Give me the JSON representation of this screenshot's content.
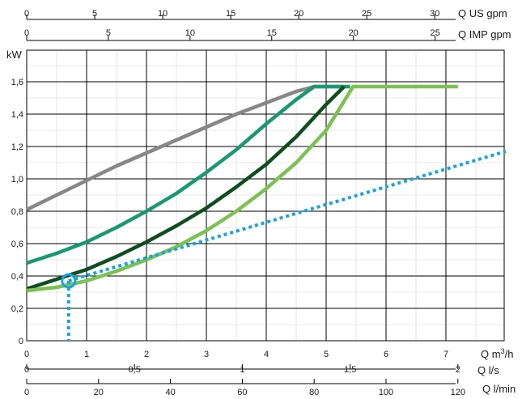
{
  "chart_data": {
    "type": "line",
    "grid": true,
    "y_axis": {
      "label": "kW",
      "ticks": [
        "0",
        "0,2",
        "0,4",
        "0,6",
        "0,8",
        "1,0",
        "1,2",
        "1,4",
        "1,6"
      ],
      "ylim": [
        0,
        1.8
      ]
    },
    "x_axis": {
      "label": "Q m³/h",
      "ticks": [
        "0",
        "1",
        "2",
        "3",
        "4",
        "5",
        "6",
        "7"
      ],
      "xlim": [
        0,
        8
      ]
    },
    "secondary_axes": [
      {
        "label": "Q US gpm",
        "position": "top-outer",
        "ticks": [
          {
            "v": 0,
            "t": "0"
          },
          {
            "v": 5,
            "t": "5"
          },
          {
            "v": 10,
            "t": "10"
          },
          {
            "v": 15,
            "t": "15"
          },
          {
            "v": 20,
            "t": "20"
          },
          {
            "v": 25,
            "t": "25"
          },
          {
            "v": 30,
            "t": "30"
          }
        ],
        "per_m3h": 4.4029
      },
      {
        "label": "Q IMP gpm",
        "position": "top-inner",
        "ticks": [
          {
            "v": 0,
            "t": "0"
          },
          {
            "v": 5,
            "t": "5"
          },
          {
            "v": 10,
            "t": "10"
          },
          {
            "v": 15,
            "t": "15"
          },
          {
            "v": 20,
            "t": "20"
          },
          {
            "v": 25,
            "t": "25"
          }
        ],
        "per_m3h": 3.6662
      },
      {
        "label": "Q l/s",
        "position": "bottom-middle",
        "ticks": [
          {
            "v": 0,
            "t": "0"
          },
          {
            "v": 0.5,
            "t": "0,5"
          },
          {
            "v": 1,
            "t": "1"
          },
          {
            "v": 1.5,
            "t": "1,5"
          },
          {
            "v": 2,
            "t": "2"
          }
        ],
        "per_m3h": 0.27778
      },
      {
        "label": "Q l/min",
        "position": "bottom-outer",
        "ticks": [
          {
            "v": 0,
            "t": "0"
          },
          {
            "v": 20,
            "t": "20"
          },
          {
            "v": 40,
            "t": "40"
          },
          {
            "v": 60,
            "t": "60"
          },
          {
            "v": 80,
            "t": "80"
          },
          {
            "v": 100,
            "t": "100"
          },
          {
            "v": 120,
            "t": "120"
          }
        ],
        "per_m3h": 16.6667
      }
    ],
    "series": [
      {
        "color": "#878787",
        "x": [
          0,
          0.5,
          1,
          1.5,
          2,
          2.5,
          3,
          3.5,
          4,
          4.5,
          4.8,
          5.3
        ],
        "y": [
          0.81,
          0.9,
          0.99,
          1.08,
          1.16,
          1.24,
          1.32,
          1.4,
          1.47,
          1.54,
          1.57,
          1.57
        ]
      },
      {
        "color": "#1a9970",
        "x": [
          0,
          0.5,
          1,
          1.5,
          2,
          2.5,
          3,
          3.5,
          4,
          4.5,
          4.8,
          5.4
        ],
        "y": [
          0.48,
          0.54,
          0.61,
          0.7,
          0.8,
          0.91,
          1.04,
          1.18,
          1.34,
          1.49,
          1.57,
          1.57
        ]
      },
      {
        "color": "#0f4d1e",
        "x": [
          0,
          0.5,
          1,
          1.5,
          2,
          2.5,
          3,
          3.5,
          4,
          4.5,
          5,
          5.3
        ],
        "y": [
          0.32,
          0.38,
          0.44,
          0.52,
          0.61,
          0.71,
          0.82,
          0.95,
          1.09,
          1.26,
          1.46,
          1.57
        ]
      },
      {
        "color": "#7cc152",
        "x": [
          0,
          0.5,
          1,
          1.5,
          2,
          2.5,
          3,
          3.5,
          4,
          4.5,
          5,
          5.45,
          7.2
        ],
        "y": [
          0.31,
          0.33,
          0.37,
          0.43,
          0.5,
          0.58,
          0.68,
          0.8,
          0.94,
          1.1,
          1.3,
          1.57,
          1.57
        ]
      }
    ],
    "system_curve": {
      "color": "#1aa3e0",
      "x": [
        0.7,
        8
      ],
      "y": [
        0.37,
        1.17
      ]
    },
    "operating_point": {
      "x": 0.7,
      "y": 0.37,
      "color": "#1aa3e0"
    }
  }
}
